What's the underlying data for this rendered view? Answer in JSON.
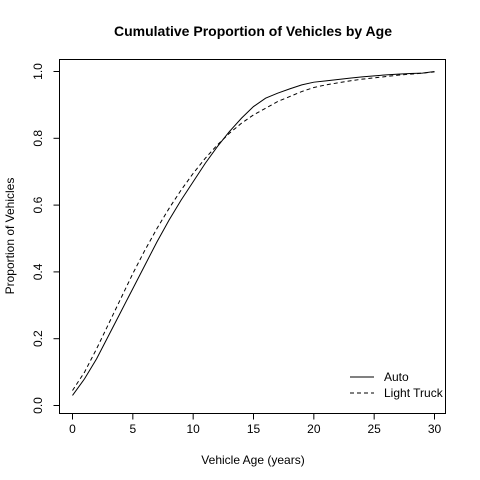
{
  "chart_data": {
    "type": "line",
    "title": "Cumulative Proportion of Vehicles by Age",
    "xlabel": "Vehicle Age (years)",
    "ylabel": "Proportion of Vehicles",
    "xlim": [
      0,
      30
    ],
    "ylim": [
      0,
      1
    ],
    "x_ticks": [
      0,
      5,
      10,
      15,
      20,
      25,
      30
    ],
    "y_ticks": [
      0.0,
      0.2,
      0.4,
      0.6,
      0.8,
      1.0
    ],
    "y_tick_labels": [
      "0.0",
      "0.2",
      "0.4",
      "0.6",
      "0.8",
      "1.0"
    ],
    "legend_position": "bottom-right",
    "grid": false,
    "series": [
      {
        "name": "Auto",
        "line_style": "solid",
        "color": "#000000",
        "x": [
          0,
          1,
          2,
          3,
          4,
          5,
          6,
          7,
          8,
          9,
          10,
          11,
          12,
          13,
          14,
          15,
          16,
          17,
          18,
          19,
          20,
          21,
          22,
          23,
          24,
          25,
          26,
          27,
          28,
          29,
          30
        ],
        "y": [
          0.03,
          0.08,
          0.14,
          0.21,
          0.28,
          0.35,
          0.42,
          0.49,
          0.555,
          0.615,
          0.67,
          0.725,
          0.775,
          0.82,
          0.86,
          0.895,
          0.92,
          0.935,
          0.948,
          0.96,
          0.968,
          0.972,
          0.976,
          0.98,
          0.984,
          0.987,
          0.99,
          0.992,
          0.994,
          0.995,
          1.0
        ]
      },
      {
        "name": "Light Truck",
        "line_style": "dashed",
        "color": "#000000",
        "x": [
          0,
          1,
          2,
          3,
          4,
          5,
          6,
          7,
          8,
          9,
          10,
          11,
          12,
          13,
          14,
          15,
          16,
          17,
          18,
          19,
          20,
          21,
          22,
          23,
          24,
          25,
          26,
          27,
          28,
          29,
          30
        ],
        "y": [
          0.045,
          0.1,
          0.17,
          0.245,
          0.32,
          0.395,
          0.465,
          0.53,
          0.59,
          0.645,
          0.695,
          0.74,
          0.78,
          0.815,
          0.845,
          0.87,
          0.89,
          0.91,
          0.925,
          0.94,
          0.952,
          0.96,
          0.966,
          0.972,
          0.977,
          0.981,
          0.985,
          0.989,
          0.992,
          0.995,
          0.999
        ]
      }
    ]
  }
}
